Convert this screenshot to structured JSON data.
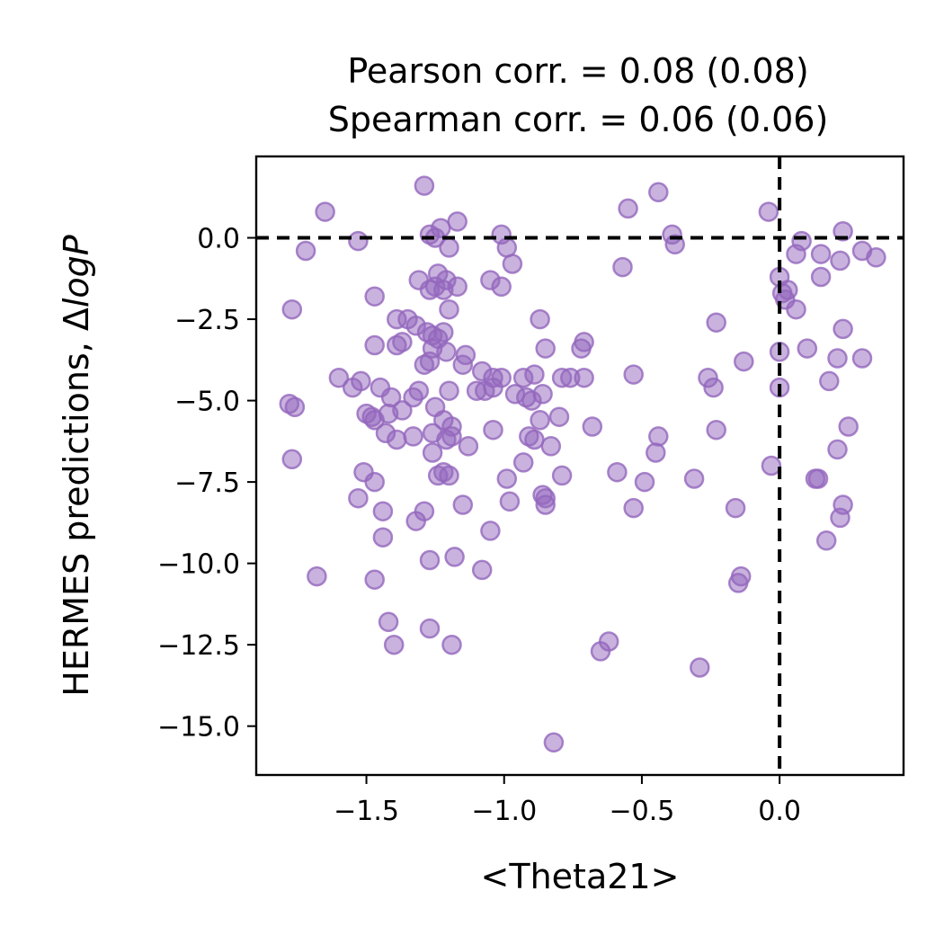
{
  "chart_data": {
    "type": "scatter",
    "title": [
      "Pearson corr. = 0.08 (0.08)",
      "Spearman corr. = 0.06 (0.06)"
    ],
    "xlabel": "<Theta21>",
    "ylabel_prefix": "HERMES predictions, Δ",
    "ylabel_italic": "logP",
    "xlim": [
      -1.9,
      0.45
    ],
    "ylim": [
      -16.5,
      2.5
    ],
    "xticks": [
      -1.5,
      -1.0,
      -0.5,
      0.0
    ],
    "xtick_labels": [
      "−1.5",
      "−1.0",
      "−0.5",
      "0.0"
    ],
    "yticks": [
      0.0,
      -2.5,
      -5.0,
      -7.5,
      -10.0,
      -12.5,
      -15.0
    ],
    "ytick_labels": [
      "0.0",
      "−2.5",
      "−5.0",
      "−7.5",
      "−10.0",
      "−12.5",
      "−15.0"
    ],
    "hlines": [
      0.0
    ],
    "vlines": [
      0.0
    ],
    "grid": false,
    "marker_color": "#9467bd",
    "marker_alpha": 0.5,
    "points": [
      [
        -1.29,
        1.6
      ],
      [
        -0.44,
        1.4
      ],
      [
        -1.65,
        0.8
      ],
      [
        -0.55,
        0.9
      ],
      [
        -0.04,
        0.8
      ],
      [
        -1.17,
        0.5
      ],
      [
        -1.23,
        0.3
      ],
      [
        -1.27,
        0.1
      ],
      [
        -1.01,
        0.1
      ],
      [
        -0.39,
        0.1
      ],
      [
        -1.53,
        -0.1
      ],
      [
        -1.25,
        0.0
      ],
      [
        -0.99,
        -0.3
      ],
      [
        -1.72,
        -0.4
      ],
      [
        -1.2,
        -0.3
      ],
      [
        -0.38,
        -0.2
      ],
      [
        -0.97,
        -0.8
      ],
      [
        -0.57,
        -0.9
      ],
      [
        0.08,
        -0.1
      ],
      [
        0.23,
        0.2
      ],
      [
        0.06,
        -0.5
      ],
      [
        0.15,
        -0.5
      ],
      [
        0.3,
        -0.4
      ],
      [
        0.35,
        -0.6
      ],
      [
        0.22,
        -0.7
      ],
      [
        -1.24,
        -1.1
      ],
      [
        -1.21,
        -1.3
      ],
      [
        -1.31,
        -1.3
      ],
      [
        -1.17,
        -1.5
      ],
      [
        -1.25,
        -1.5
      ],
      [
        -1.27,
        -1.6
      ],
      [
        -1.22,
        -1.6
      ],
      [
        -1.05,
        -1.3
      ],
      [
        -1.01,
        -1.5
      ],
      [
        -1.47,
        -1.8
      ],
      [
        -1.2,
        -2.2
      ],
      [
        -1.77,
        -2.2
      ],
      [
        -0.87,
        -2.5
      ],
      [
        -0.23,
        -2.6
      ],
      [
        -1.39,
        -2.5
      ],
      [
        -1.35,
        -2.5
      ],
      [
        -1.32,
        -2.7
      ],
      [
        -1.28,
        -2.9
      ],
      [
        -1.22,
        -2.9
      ],
      [
        -1.26,
        -3.0
      ],
      [
        -1.24,
        -3.1
      ],
      [
        -1.37,
        -3.2
      ],
      [
        -1.39,
        -3.3
      ],
      [
        -1.47,
        -3.3
      ],
      [
        -1.26,
        -3.4
      ],
      [
        -1.21,
        -3.5
      ],
      [
        -0.85,
        -3.4
      ],
      [
        -0.71,
        -3.2
      ],
      [
        -0.72,
        -3.4
      ],
      [
        0.0,
        -1.2
      ],
      [
        0.01,
        -1.7
      ],
      [
        0.02,
        -1.9
      ],
      [
        0.03,
        -1.6
      ],
      [
        0.06,
        -2.2
      ],
      [
        0.15,
        -1.2
      ],
      [
        0.1,
        -3.4
      ],
      [
        0.0,
        -3.5
      ],
      [
        0.23,
        -2.8
      ],
      [
        -1.27,
        -3.8
      ],
      [
        -1.29,
        -3.9
      ],
      [
        -1.15,
        -3.9
      ],
      [
        -1.14,
        -3.6
      ],
      [
        -1.08,
        -4.1
      ],
      [
        -1.04,
        -4.3
      ],
      [
        -1.01,
        -4.3
      ],
      [
        -0.93,
        -4.3
      ],
      [
        -0.89,
        -4.2
      ],
      [
        -0.79,
        -4.3
      ],
      [
        -0.76,
        -4.3
      ],
      [
        -0.71,
        -4.3
      ],
      [
        -0.53,
        -4.2
      ],
      [
        -0.26,
        -4.3
      ],
      [
        -0.24,
        -4.6
      ],
      [
        -0.13,
        -3.8
      ],
      [
        0.21,
        -3.7
      ],
      [
        0.3,
        -3.7
      ],
      [
        0.18,
        -4.4
      ],
      [
        -1.6,
        -4.3
      ],
      [
        -1.55,
        -4.6
      ],
      [
        -1.52,
        -4.4
      ],
      [
        -1.45,
        -4.6
      ],
      [
        -1.41,
        -4.9
      ],
      [
        -1.31,
        -4.7
      ],
      [
        -1.33,
        -4.9
      ],
      [
        -1.2,
        -4.7
      ],
      [
        -1.1,
        -4.7
      ],
      [
        -1.07,
        -4.7
      ],
      [
        -1.04,
        -4.6
      ],
      [
        -0.96,
        -4.8
      ],
      [
        -0.9,
        -5.0
      ],
      [
        -0.86,
        -4.8
      ],
      [
        -0.92,
        -4.9
      ],
      [
        0.0,
        -4.6
      ],
      [
        -1.78,
        -5.1
      ],
      [
        -1.76,
        -5.2
      ],
      [
        -1.5,
        -5.4
      ],
      [
        -1.48,
        -5.5
      ],
      [
        -1.47,
        -5.6
      ],
      [
        -1.42,
        -5.4
      ],
      [
        -1.37,
        -5.3
      ],
      [
        -1.25,
        -5.2
      ],
      [
        -1.22,
        -5.6
      ],
      [
        -1.19,
        -5.8
      ],
      [
        -0.87,
        -5.6
      ],
      [
        -0.8,
        -5.5
      ],
      [
        -0.68,
        -5.8
      ],
      [
        -1.43,
        -6.0
      ],
      [
        -1.39,
        -6.2
      ],
      [
        -1.33,
        -6.1
      ],
      [
        -1.26,
        -6.0
      ],
      [
        -1.19,
        -6.1
      ],
      [
        -1.21,
        -6.2
      ],
      [
        -1.13,
        -6.4
      ],
      [
        -1.04,
        -5.9
      ],
      [
        -0.91,
        -6.1
      ],
      [
        -0.89,
        -6.2
      ],
      [
        -0.83,
        -6.4
      ],
      [
        -0.44,
        -6.1
      ],
      [
        -0.45,
        -6.6
      ],
      [
        -0.23,
        -5.9
      ],
      [
        0.25,
        -5.8
      ],
      [
        0.21,
        -6.5
      ],
      [
        -1.77,
        -6.8
      ],
      [
        -1.26,
        -6.6
      ],
      [
        -1.22,
        -7.2
      ],
      [
        -1.24,
        -7.3
      ],
      [
        -1.2,
        -7.3
      ],
      [
        -1.51,
        -7.2
      ],
      [
        -1.47,
        -7.5
      ],
      [
        -0.93,
        -6.9
      ],
      [
        -0.99,
        -7.4
      ],
      [
        -0.79,
        -7.3
      ],
      [
        -0.59,
        -7.2
      ],
      [
        -0.49,
        -7.5
      ],
      [
        -0.31,
        -7.4
      ],
      [
        -0.03,
        -7.0
      ],
      [
        0.13,
        -7.4
      ],
      [
        0.14,
        -7.4
      ],
      [
        -1.53,
        -8.0
      ],
      [
        -1.44,
        -8.4
      ],
      [
        -1.29,
        -8.4
      ],
      [
        -1.32,
        -8.7
      ],
      [
        -1.15,
        -8.2
      ],
      [
        -0.98,
        -8.1
      ],
      [
        -0.86,
        -7.9
      ],
      [
        -0.85,
        -8.0
      ],
      [
        -0.85,
        -8.2
      ],
      [
        -0.53,
        -8.3
      ],
      [
        -0.16,
        -8.3
      ],
      [
        0.23,
        -8.2
      ],
      [
        0.22,
        -8.6
      ],
      [
        -1.44,
        -9.2
      ],
      [
        -1.05,
        -9.0
      ],
      [
        0.17,
        -9.3
      ],
      [
        -1.68,
        -10.4
      ],
      [
        -1.47,
        -10.5
      ],
      [
        -1.27,
        -9.9
      ],
      [
        -1.18,
        -9.8
      ],
      [
        -1.08,
        -10.2
      ],
      [
        -0.14,
        -10.4
      ],
      [
        -0.15,
        -10.6
      ],
      [
        -1.42,
        -11.8
      ],
      [
        -1.27,
        -12.0
      ],
      [
        -1.4,
        -12.5
      ],
      [
        -1.19,
        -12.5
      ],
      [
        -0.62,
        -12.4
      ],
      [
        -0.65,
        -12.7
      ],
      [
        -0.29,
        -13.2
      ],
      [
        -0.82,
        -15.5
      ]
    ]
  }
}
